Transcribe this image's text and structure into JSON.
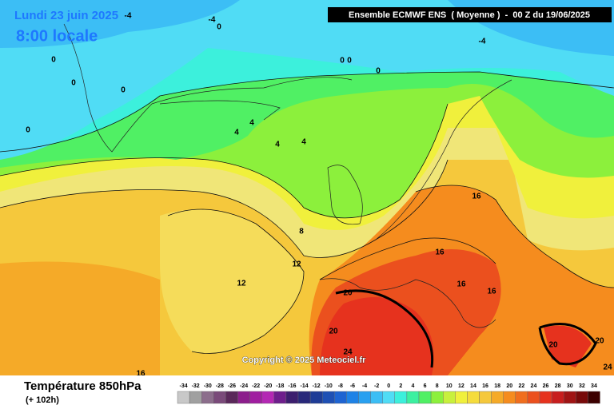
{
  "header": {
    "date": "Lundi 23 juin 2025",
    "time": "8:00 locale",
    "run": "Ensemble ECMWF ENS  ( Moyenne )  -  00 Z du 19/06/2025"
  },
  "copyright": "Copyright © 2025 Meteociel.fr",
  "footer": {
    "title": "Température 850hPa",
    "subtitle": "(+ 102h)"
  },
  "contour_labels": [
    -4,
    -4,
    0,
    -4,
    0,
    0,
    0,
    0,
    0,
    0,
    0,
    4,
    4,
    4,
    4,
    8,
    12,
    12,
    16,
    16,
    16,
    16,
    20,
    20,
    24,
    20,
    20,
    24,
    16
  ],
  "legend": {
    "values": [
      -34,
      -32,
      -30,
      -28,
      -26,
      -24,
      -22,
      -20,
      -18,
      -16,
      -14,
      -12,
      -10,
      -8,
      -6,
      -4,
      -2,
      0,
      2,
      4,
      6,
      8,
      10,
      12,
      14,
      16,
      18,
      20,
      22,
      24,
      26,
      28,
      30,
      32,
      34
    ],
    "colors": [
      "#c8c8c8",
      "#a0a0a0",
      "#8c6e8c",
      "#7a4a7a",
      "#5a285a",
      "#8c1e8c",
      "#a01ea0",
      "#b428b4",
      "#6e1e8c",
      "#3c1e6e",
      "#28287a",
      "#1e3c96",
      "#1e50b4",
      "#1e64d2",
      "#1e82e6",
      "#28a0f0",
      "#3cbef5",
      "#50dcf5",
      "#3cf0dc",
      "#3cf0a0",
      "#50f064",
      "#8cf03c",
      "#c8f03c",
      "#f0f03c",
      "#f5dc3c",
      "#f5c83c",
      "#f5aa28",
      "#f58c1e",
      "#f06e1e",
      "#eb501e",
      "#e6321e",
      "#c81e1e",
      "#a01414",
      "#780a0a",
      "#3c0000"
    ]
  }
}
